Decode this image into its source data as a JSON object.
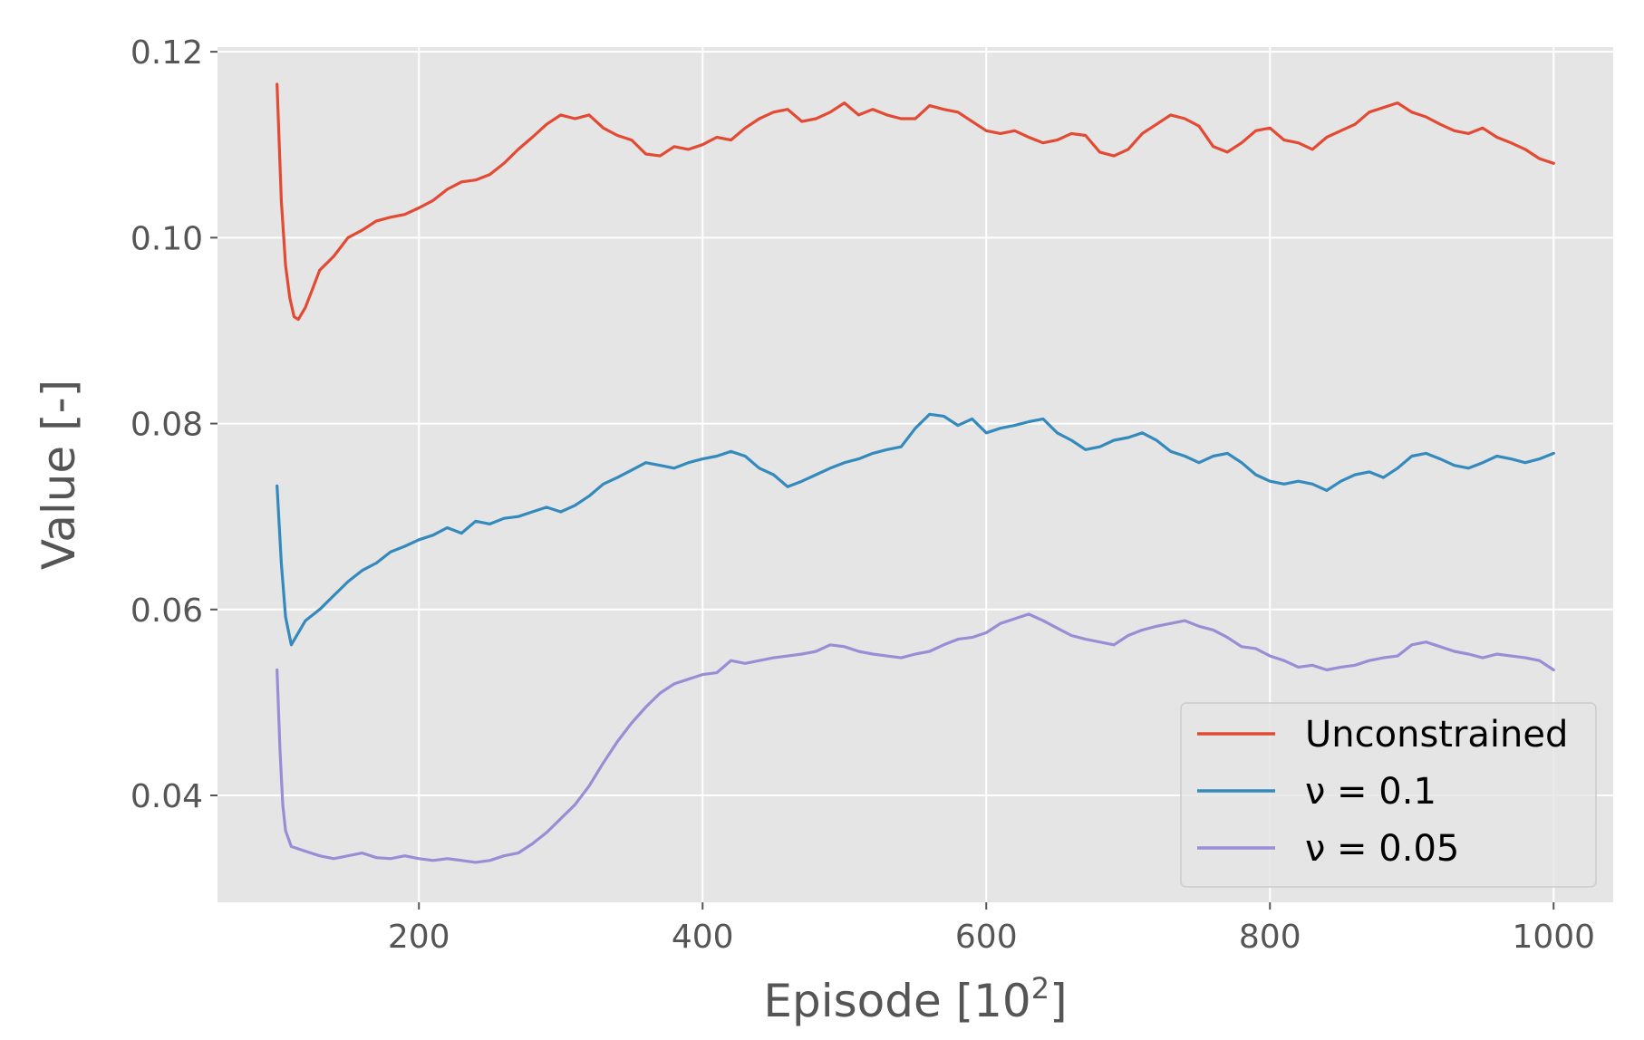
{
  "chart_data": {
    "type": "line",
    "xlabel": {
      "base": "Episode [10",
      "sup": "2",
      "tail": "]"
    },
    "ylabel": "Value [-]",
    "xlim": [
      58,
      1042
    ],
    "ylim": [
      0.0285,
      0.1205
    ],
    "xticks": [
      200,
      400,
      600,
      800,
      1000
    ],
    "yticks": [
      0.04,
      0.06,
      0.08,
      0.1,
      0.12
    ],
    "xtick_labels": [
      "200",
      "400",
      "600",
      "800",
      "1000"
    ],
    "ytick_labels": [
      "0.04",
      "0.06",
      "0.08",
      "0.10",
      "0.12"
    ],
    "grid": true,
    "legend_position": "lower-right",
    "series": [
      {
        "name": "Unconstrained",
        "color": "#E24A33",
        "x": [
          100,
          103,
          106,
          109,
          112,
          115,
          120,
          125,
          130,
          140,
          150,
          160,
          170,
          180,
          190,
          200,
          210,
          220,
          230,
          240,
          250,
          260,
          270,
          280,
          290,
          300,
          310,
          320,
          330,
          340,
          350,
          360,
          370,
          380,
          390,
          400,
          410,
          420,
          430,
          440,
          450,
          460,
          470,
          480,
          490,
          500,
          510,
          520,
          530,
          540,
          550,
          560,
          570,
          580,
          590,
          600,
          610,
          620,
          630,
          640,
          650,
          660,
          670,
          680,
          690,
          700,
          710,
          720,
          730,
          740,
          750,
          760,
          770,
          780,
          790,
          800,
          810,
          820,
          830,
          840,
          850,
          860,
          870,
          880,
          890,
          900,
          910,
          920,
          930,
          940,
          950,
          960,
          970,
          980,
          990,
          1000
        ],
        "y": [
          0.1165,
          0.104,
          0.097,
          0.0935,
          0.0915,
          0.0912,
          0.0925,
          0.0945,
          0.0965,
          0.098,
          0.1,
          0.1008,
          0.1018,
          0.1022,
          0.1025,
          0.1032,
          0.104,
          0.1052,
          0.106,
          0.1062,
          0.1068,
          0.108,
          0.1095,
          0.1108,
          0.1122,
          0.1132,
          0.1128,
          0.1132,
          0.1118,
          0.111,
          0.1105,
          0.109,
          0.1088,
          0.1098,
          0.1095,
          0.11,
          0.1108,
          0.1105,
          0.1118,
          0.1128,
          0.1135,
          0.1138,
          0.1125,
          0.1128,
          0.1135,
          0.1145,
          0.1132,
          0.1138,
          0.1132,
          0.1128,
          0.1128,
          0.1142,
          0.1138,
          0.1135,
          0.1125,
          0.1115,
          0.1112,
          0.1115,
          0.1108,
          0.1102,
          0.1105,
          0.1112,
          0.111,
          0.1092,
          0.1088,
          0.1095,
          0.1112,
          0.1122,
          0.1132,
          0.1128,
          0.112,
          0.1098,
          0.1092,
          0.1102,
          0.1115,
          0.1118,
          0.1105,
          0.1102,
          0.1095,
          0.1108,
          0.1115,
          0.1122,
          0.1135,
          0.114,
          0.1145,
          0.1135,
          0.113,
          0.1122,
          0.1115,
          0.1112,
          0.1118,
          0.1108,
          0.1102,
          0.1095,
          0.1085,
          0.108
        ]
      },
      {
        "name": "ν = 0.1",
        "color": "#348ABD",
        "x": [
          100,
          103,
          106,
          110,
          115,
          120,
          130,
          140,
          150,
          160,
          170,
          180,
          190,
          200,
          210,
          220,
          230,
          240,
          250,
          260,
          270,
          280,
          290,
          300,
          310,
          320,
          330,
          340,
          350,
          360,
          370,
          380,
          390,
          400,
          410,
          420,
          430,
          440,
          450,
          460,
          470,
          480,
          490,
          500,
          510,
          520,
          530,
          540,
          550,
          560,
          570,
          580,
          590,
          600,
          610,
          620,
          630,
          640,
          650,
          660,
          670,
          680,
          690,
          700,
          710,
          720,
          730,
          740,
          750,
          760,
          770,
          780,
          790,
          800,
          810,
          820,
          830,
          840,
          850,
          860,
          870,
          880,
          890,
          900,
          910,
          920,
          930,
          940,
          950,
          960,
          970,
          980,
          990,
          1000
        ],
        "y": [
          0.0733,
          0.065,
          0.0592,
          0.0562,
          0.0575,
          0.0588,
          0.06,
          0.0615,
          0.063,
          0.0642,
          0.065,
          0.0662,
          0.0668,
          0.0675,
          0.068,
          0.0688,
          0.0682,
          0.0695,
          0.0692,
          0.0698,
          0.07,
          0.0705,
          0.071,
          0.0705,
          0.0712,
          0.0722,
          0.0735,
          0.0742,
          0.075,
          0.0758,
          0.0755,
          0.0752,
          0.0758,
          0.0762,
          0.0765,
          0.077,
          0.0765,
          0.0752,
          0.0745,
          0.0732,
          0.0738,
          0.0745,
          0.0752,
          0.0758,
          0.0762,
          0.0768,
          0.0772,
          0.0775,
          0.0795,
          0.081,
          0.0808,
          0.0798,
          0.0805,
          0.079,
          0.0795,
          0.0798,
          0.0802,
          0.0805,
          0.079,
          0.0782,
          0.0772,
          0.0775,
          0.0782,
          0.0785,
          0.079,
          0.0782,
          0.077,
          0.0765,
          0.0758,
          0.0765,
          0.0768,
          0.0758,
          0.0745,
          0.0738,
          0.0735,
          0.0738,
          0.0735,
          0.0728,
          0.0738,
          0.0745,
          0.0748,
          0.0742,
          0.0752,
          0.0765,
          0.0768,
          0.0762,
          0.0755,
          0.0752,
          0.0758,
          0.0765,
          0.0762,
          0.0758,
          0.0762,
          0.0768
        ]
      },
      {
        "name": "ν = 0.05",
        "color": "#988ED5",
        "x": [
          100,
          102,
          104,
          106,
          110,
          120,
          130,
          140,
          150,
          160,
          170,
          180,
          190,
          200,
          210,
          220,
          230,
          240,
          250,
          260,
          270,
          280,
          290,
          300,
          310,
          320,
          330,
          340,
          350,
          360,
          370,
          380,
          390,
          400,
          410,
          420,
          430,
          440,
          450,
          460,
          470,
          480,
          490,
          500,
          510,
          520,
          530,
          540,
          550,
          560,
          570,
          580,
          590,
          600,
          610,
          620,
          630,
          640,
          650,
          660,
          670,
          680,
          690,
          700,
          710,
          720,
          730,
          740,
          750,
          760,
          770,
          780,
          790,
          800,
          810,
          820,
          830,
          840,
          850,
          860,
          870,
          880,
          890,
          900,
          910,
          920,
          930,
          940,
          950,
          960,
          970,
          980,
          990,
          1000
        ],
        "y": [
          0.0535,
          0.045,
          0.039,
          0.0362,
          0.0345,
          0.034,
          0.0335,
          0.0332,
          0.0335,
          0.0338,
          0.0333,
          0.0332,
          0.0335,
          0.0332,
          0.033,
          0.0332,
          0.033,
          0.0328,
          0.033,
          0.0335,
          0.0338,
          0.0348,
          0.036,
          0.0375,
          0.039,
          0.041,
          0.0435,
          0.0458,
          0.0478,
          0.0495,
          0.051,
          0.052,
          0.0525,
          0.053,
          0.0532,
          0.0545,
          0.0542,
          0.0545,
          0.0548,
          0.055,
          0.0552,
          0.0555,
          0.0562,
          0.056,
          0.0555,
          0.0552,
          0.055,
          0.0548,
          0.0552,
          0.0555,
          0.0562,
          0.0568,
          0.057,
          0.0575,
          0.0585,
          0.059,
          0.0595,
          0.0588,
          0.058,
          0.0572,
          0.0568,
          0.0565,
          0.0562,
          0.0572,
          0.0578,
          0.0582,
          0.0585,
          0.0588,
          0.0582,
          0.0578,
          0.057,
          0.056,
          0.0558,
          0.055,
          0.0545,
          0.0538,
          0.054,
          0.0535,
          0.0538,
          0.054,
          0.0545,
          0.0548,
          0.055,
          0.0562,
          0.0565,
          0.056,
          0.0555,
          0.0552,
          0.0548,
          0.0552,
          0.055,
          0.0548,
          0.0545,
          0.0535
        ]
      }
    ]
  }
}
